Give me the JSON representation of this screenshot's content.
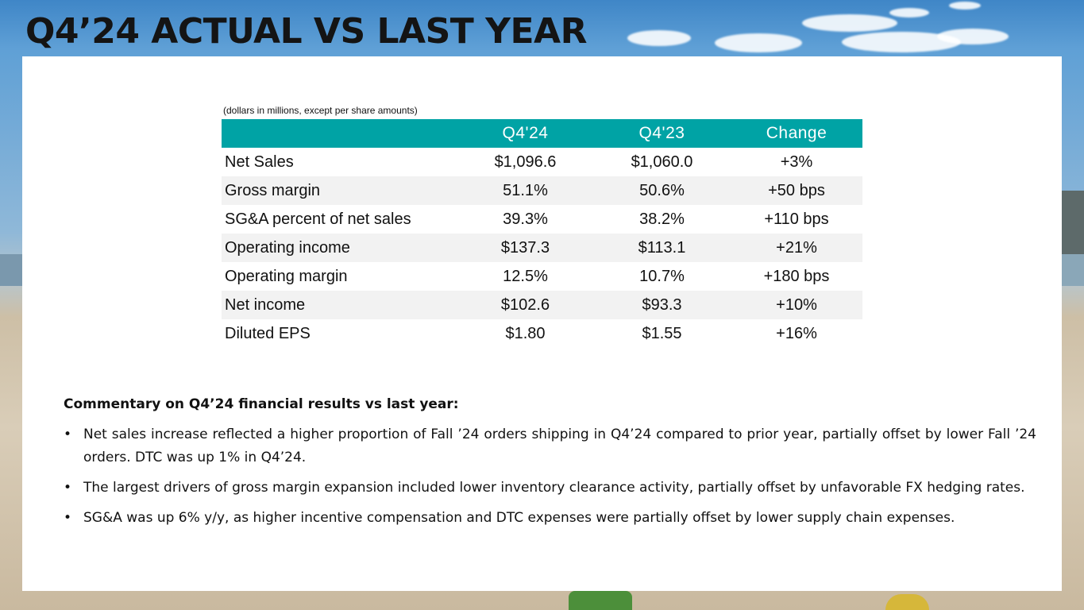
{
  "title": "Q4’24 ACTUAL VS LAST YEAR",
  "table": {
    "note": "(dollars in millions, except per share amounts)",
    "headers": [
      "",
      "Q4'24",
      "Q4'23",
      "Change"
    ],
    "rows": [
      {
        "label": "Net Sales",
        "q4_24": "$1,096.6",
        "q4_23": "$1,060.0",
        "change": "+3%"
      },
      {
        "label": "Gross margin",
        "q4_24": "51.1%",
        "q4_23": "50.6%",
        "change": "+50 bps"
      },
      {
        "label": "SG&A percent of net sales",
        "q4_24": "39.3%",
        "q4_23": "38.2%",
        "change": "+110 bps"
      },
      {
        "label": "Operating income",
        "q4_24": "$137.3",
        "q4_23": "$113.1",
        "change": "+21%"
      },
      {
        "label": "Operating margin",
        "q4_24": "12.5%",
        "q4_23": "10.7%",
        "change": "+180 bps"
      },
      {
        "label": "Net income",
        "q4_24": "$102.6",
        "q4_23": "$93.3",
        "change": "+10%"
      },
      {
        "label": "Diluted EPS",
        "q4_24": "$1.80",
        "q4_23": "$1.55",
        "change": "+16%"
      }
    ]
  },
  "commentary": {
    "heading": "Commentary on Q4’24 financial results vs last year:",
    "bullet_char": "•",
    "bullets": [
      "Net sales increase reflected a higher proportion of Fall ’24 orders shipping in Q4’24 compared to prior year, partially offset by lower Fall ’24 orders. DTC was up 1% in Q4’24.",
      "The largest drivers of gross margin expansion included lower inventory clearance activity, partially offset by unfavorable FX hedging rates.",
      "SG&A was up 6% y/y, as higher incentive compensation and DTC expenses were partially offset by lower supply chain expenses."
    ]
  },
  "colors": {
    "header_bg": "#00a3a5",
    "row_shade": "#f2f2f2",
    "panel": "#ffffff"
  }
}
